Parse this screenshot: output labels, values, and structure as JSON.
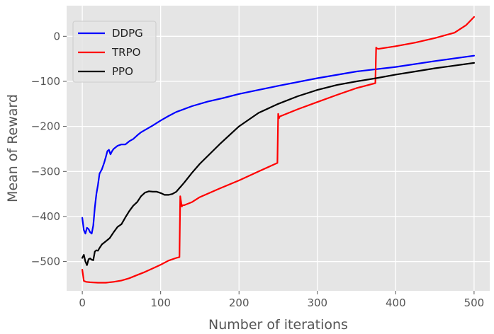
{
  "chart_data": {
    "type": "line",
    "title": "",
    "xlabel": "Number of iterations",
    "ylabel": "Mean of Reward",
    "xlim": [
      -20,
      520
    ],
    "ylim": [
      -565,
      68
    ],
    "xticks": [
      0,
      100,
      200,
      300,
      400,
      500
    ],
    "yticks": [
      -500,
      -400,
      -300,
      -200,
      -100,
      0
    ],
    "xtick_labels": [
      "0",
      "100",
      "200",
      "300",
      "400",
      "500"
    ],
    "ytick_labels": [
      "−500",
      "−400",
      "−300",
      "−200",
      "−100",
      "0"
    ],
    "grid": true,
    "legend_position": "top-left",
    "series": [
      {
        "name": "DDPG",
        "color": "#0000ff",
        "x": [
          0,
          2,
          4,
          6,
          8,
          10,
          12,
          14,
          16,
          18,
          20,
          22,
          25,
          28,
          30,
          32,
          34,
          36,
          38,
          40,
          45,
          50,
          55,
          60,
          65,
          70,
          75,
          80,
          90,
          100,
          110,
          120,
          140,
          160,
          180,
          200,
          250,
          300,
          350,
          400,
          450,
          500
        ],
        "y": [
          -403,
          -430,
          -438,
          -425,
          -428,
          -435,
          -438,
          -420,
          -380,
          -350,
          -330,
          -305,
          -295,
          -280,
          -268,
          -255,
          -252,
          -262,
          -255,
          -250,
          -243,
          -240,
          -240,
          -233,
          -228,
          -220,
          -213,
          -208,
          -198,
          -187,
          -177,
          -168,
          -155,
          -145,
          -137,
          -128,
          -110,
          -93,
          -78,
          -68,
          -55,
          -43
        ]
      },
      {
        "name": "TRPO",
        "color": "#ff0000",
        "x": [
          0,
          2,
          5,
          10,
          20,
          30,
          40,
          50,
          60,
          70,
          80,
          90,
          100,
          110,
          120,
          124,
          125,
          127,
          128,
          130,
          140,
          150,
          175,
          200,
          225,
          249,
          250,
          251,
          252,
          275,
          300,
          325,
          350,
          374,
          375,
          376,
          378,
          400,
          425,
          450,
          475,
          490,
          500
        ],
        "y": [
          -518,
          -543,
          -545,
          -546,
          -547,
          -547,
          -545,
          -542,
          -537,
          -530,
          -523,
          -515,
          -507,
          -498,
          -492,
          -490,
          -355,
          -378,
          -375,
          -375,
          -368,
          -357,
          -338,
          -320,
          -300,
          -281,
          -172,
          -182,
          -178,
          -162,
          -146,
          -130,
          -115,
          -104,
          -25,
          -27,
          -28,
          -22,
          -14,
          -4,
          8,
          25,
          43
        ]
      },
      {
        "name": "PPO",
        "color": "#000000",
        "x": [
          0,
          2,
          4,
          6,
          8,
          10,
          12,
          14,
          16,
          18,
          20,
          22,
          25,
          30,
          35,
          40,
          45,
          50,
          55,
          60,
          65,
          70,
          75,
          80,
          85,
          90,
          95,
          100,
          105,
          110,
          115,
          120,
          130,
          140,
          150,
          175,
          200,
          225,
          250,
          275,
          300,
          325,
          350,
          375,
          400,
          425,
          450,
          475,
          500
        ],
        "y": [
          -492,
          -485,
          -500,
          -508,
          -495,
          -493,
          -496,
          -497,
          -478,
          -475,
          -476,
          -470,
          -462,
          -455,
          -448,
          -435,
          -423,
          -417,
          -402,
          -388,
          -376,
          -368,
          -355,
          -347,
          -344,
          -345,
          -345,
          -348,
          -352,
          -352,
          -350,
          -345,
          -325,
          -303,
          -283,
          -240,
          -200,
          -170,
          -150,
          -133,
          -119,
          -108,
          -100,
          -93,
          -85,
          -78,
          -71,
          -65,
          -59
        ]
      }
    ]
  }
}
